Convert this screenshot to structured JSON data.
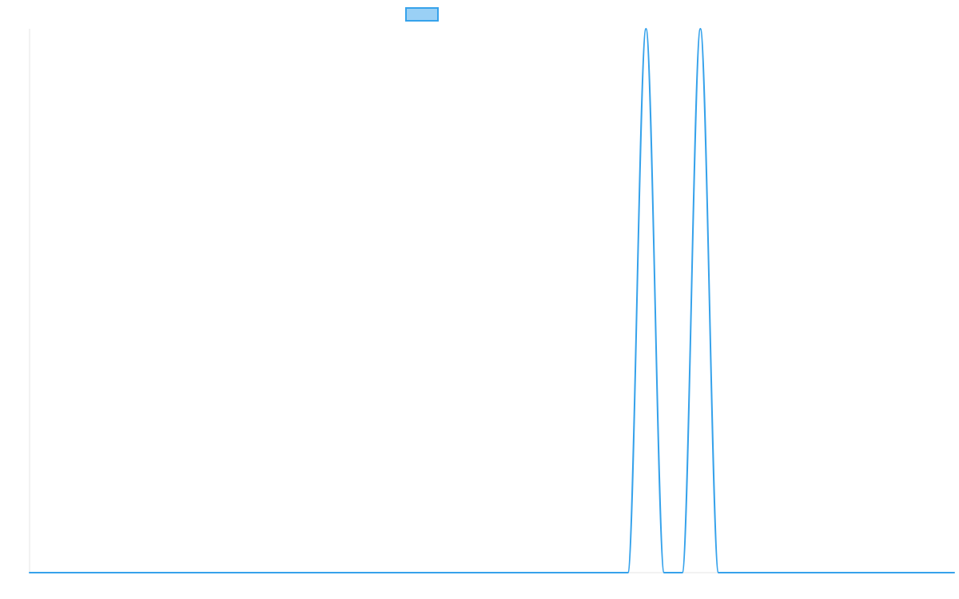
{
  "chart_data": {
    "type": "line",
    "title": "",
    "xlabel": "",
    "ylabel": "",
    "grid": false,
    "legend": {
      "placement": "top",
      "entries": [
        {
          "label": "",
          "color": "#36a2eb",
          "fill": "#9ad0f5"
        }
      ]
    },
    "x_count": 52,
    "ylim": [
      0,
      1
    ],
    "series": [
      {
        "color": "#36a2eb",
        "values": [
          0,
          0,
          0,
          0,
          0,
          0,
          0,
          0,
          0,
          0,
          0,
          0,
          0,
          0,
          0,
          0,
          0,
          0,
          0,
          0,
          0,
          0,
          0,
          0,
          0,
          0,
          0,
          0,
          0,
          0,
          0,
          0,
          0,
          0,
          1,
          0,
          0,
          1,
          0,
          0,
          0,
          0,
          0,
          0,
          0,
          0,
          0,
          0,
          0,
          0,
          0,
          0
        ]
      }
    ]
  }
}
